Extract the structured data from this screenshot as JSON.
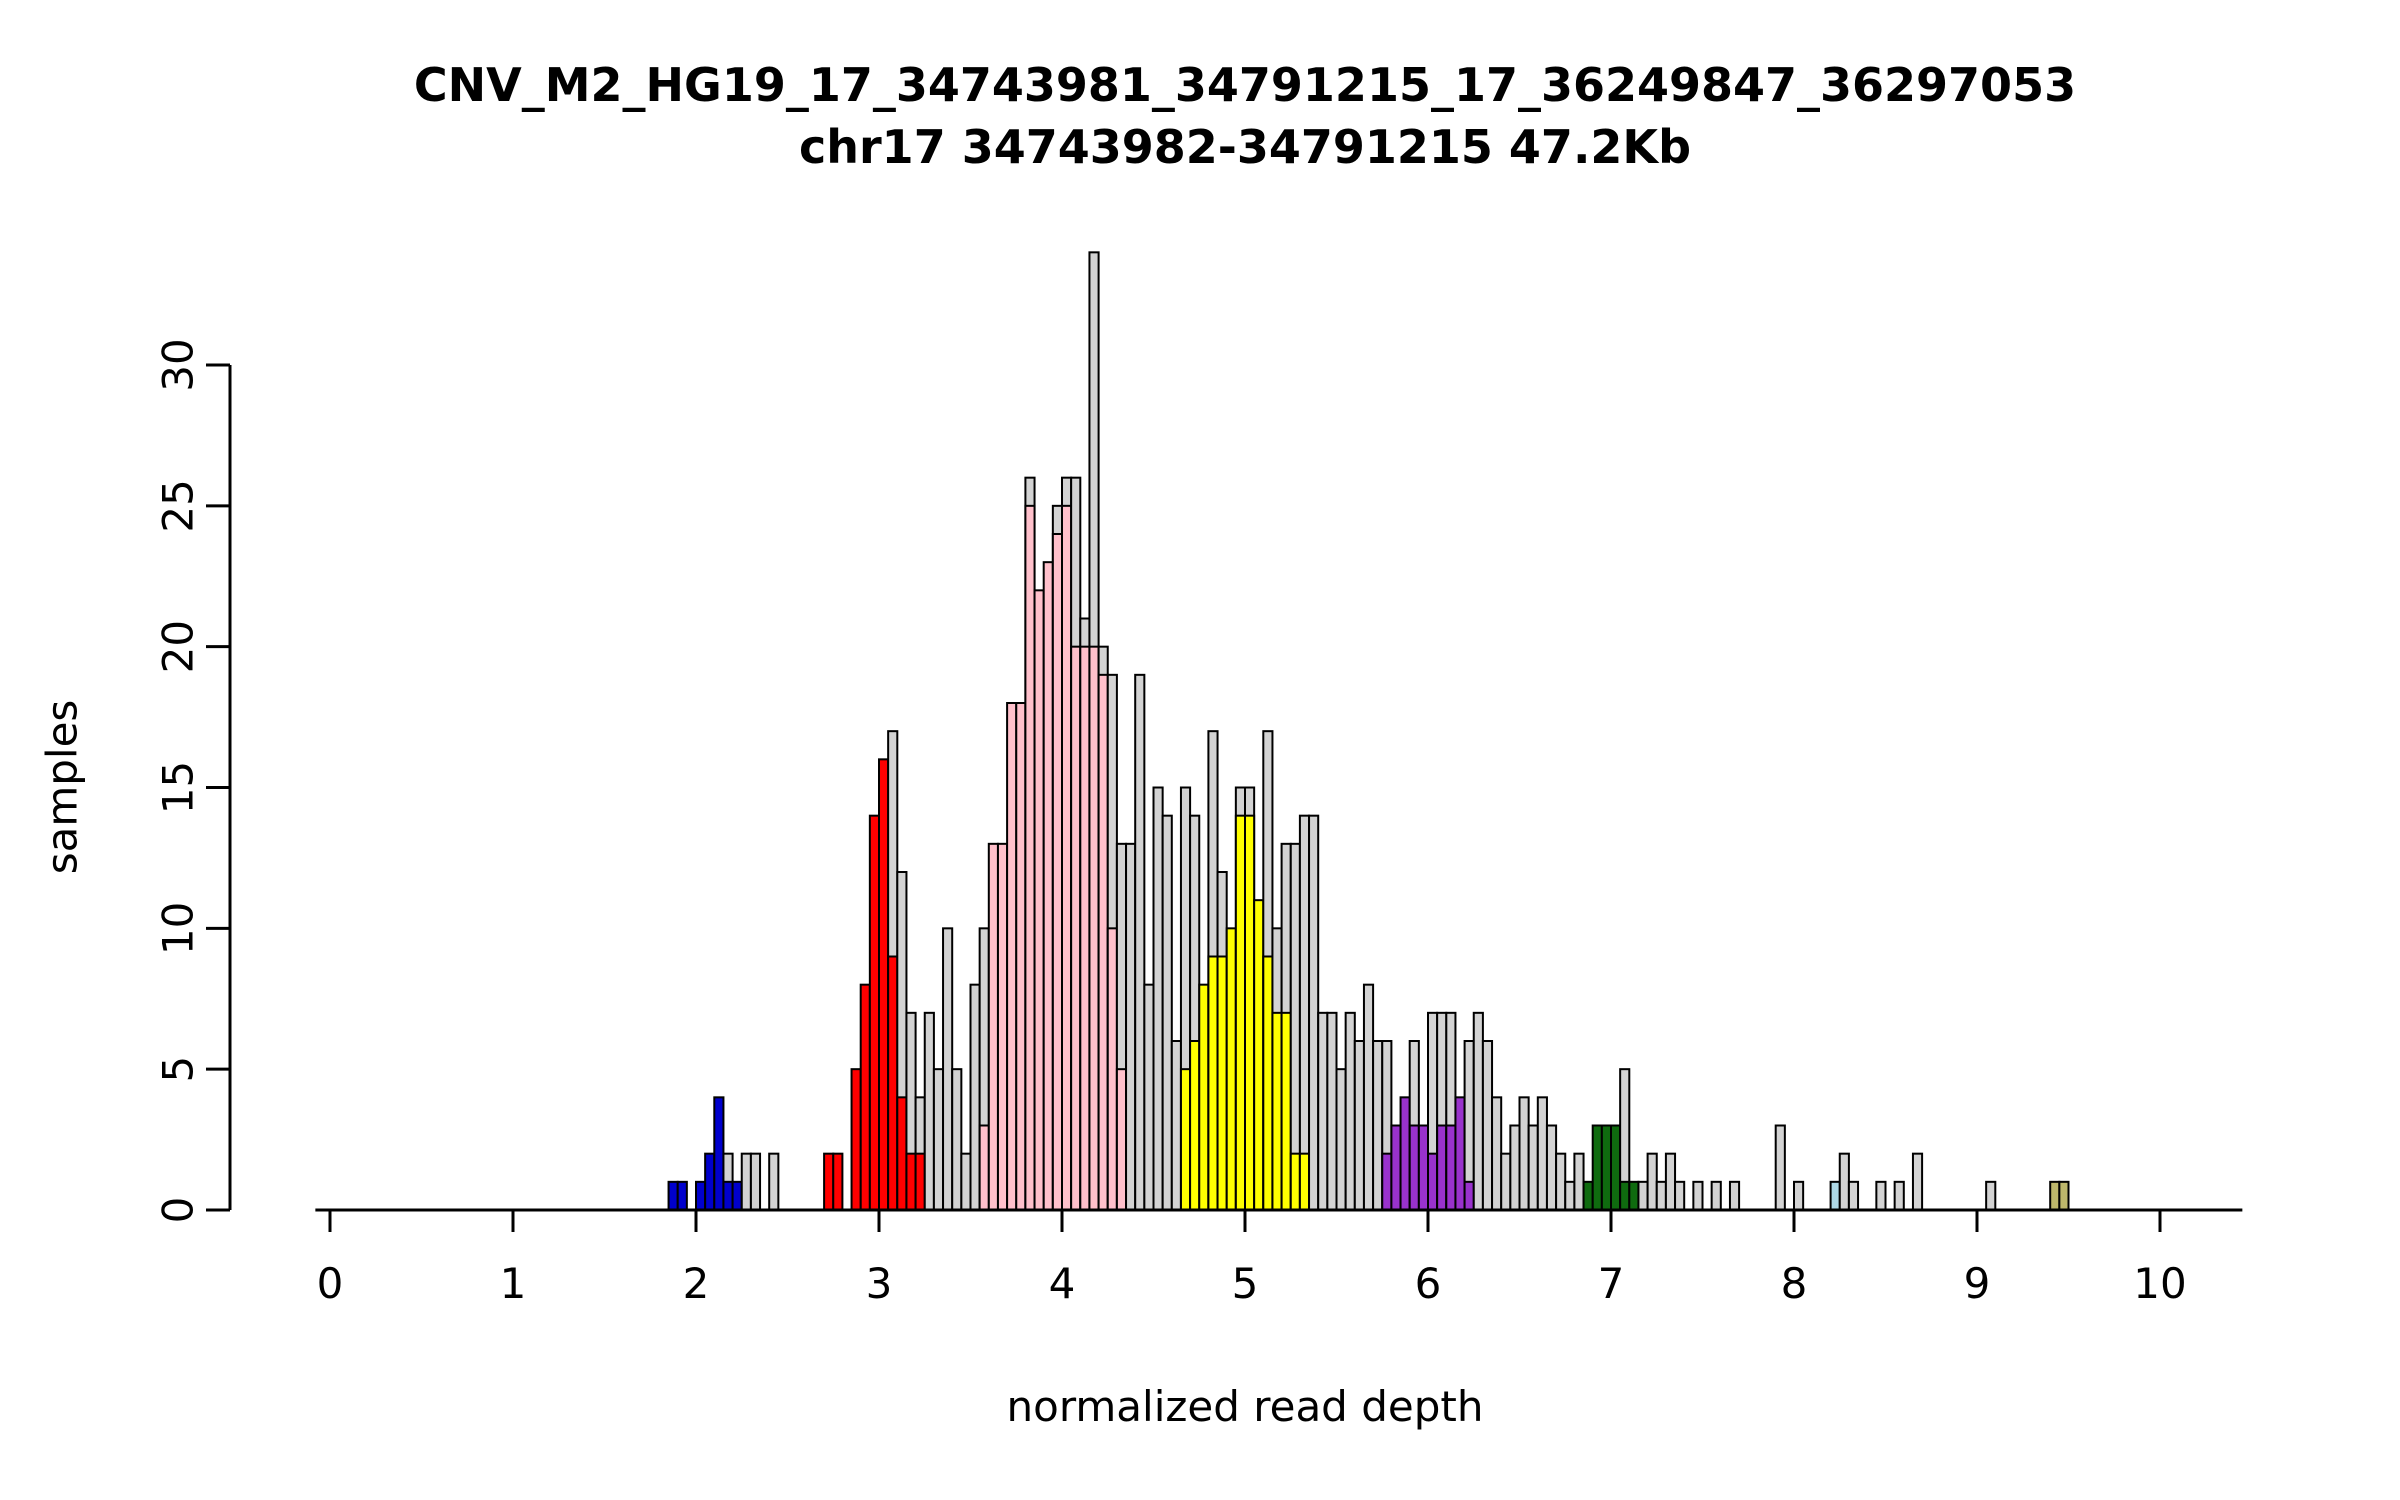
{
  "chart_data": {
    "type": "histogram",
    "title": "CNV_M2_HG19_17_34743981_34791215_17_36249847_36297053",
    "subtitle": "chr17 34743982-34791215 47.2Kb",
    "xlabel": "normalized read depth",
    "ylabel": "samples",
    "x_ticks": [
      0,
      1,
      2,
      3,
      4,
      5,
      6,
      7,
      8,
      9,
      10
    ],
    "y_ticks": [
      0,
      5,
      10,
      15,
      20,
      25,
      30
    ],
    "xlim": [
      -0.08,
      10.45
    ],
    "ylim": [
      0,
      34
    ],
    "bin_width": 0.05,
    "grid": false,
    "legend": "none",
    "colors": {
      "gray": "#d3d3d3",
      "blue": "#0000cd",
      "red": "#ff0000",
      "pink": "#ffc0cb",
      "yellow": "#ffff00",
      "purple": "#9932cc",
      "green": "#0f6b0f",
      "lightblue": "#add8e6",
      "khaki": "#bdb76b",
      "axis": "#000000"
    },
    "bins_format": [
      "x_left",
      "total_count",
      "highlight_count",
      "highlight_color"
    ],
    "bins": [
      [
        1.85,
        1,
        1,
        "blue"
      ],
      [
        1.9,
        1,
        1,
        "blue"
      ],
      [
        2.0,
        1,
        1,
        "blue"
      ],
      [
        2.05,
        2,
        2,
        "blue"
      ],
      [
        2.1,
        4,
        4,
        "blue"
      ],
      [
        2.15,
        2,
        1,
        "blue"
      ],
      [
        2.2,
        1,
        1,
        "blue"
      ],
      [
        2.25,
        2,
        0,
        "gray"
      ],
      [
        2.3,
        2,
        0,
        "gray"
      ],
      [
        2.4,
        2,
        0,
        "gray"
      ],
      [
        2.7,
        2,
        2,
        "red"
      ],
      [
        2.75,
        2,
        2,
        "red"
      ],
      [
        2.85,
        5,
        5,
        "red"
      ],
      [
        2.9,
        8,
        8,
        "red"
      ],
      [
        2.95,
        14,
        14,
        "red"
      ],
      [
        3.0,
        16,
        16,
        "red"
      ],
      [
        3.05,
        17,
        9,
        "red"
      ],
      [
        3.1,
        12,
        4,
        "red"
      ],
      [
        3.15,
        7,
        2,
        "red"
      ],
      [
        3.2,
        4,
        2,
        "red"
      ],
      [
        3.25,
        7,
        0,
        "gray"
      ],
      [
        3.3,
        5,
        0,
        "gray"
      ],
      [
        3.35,
        10,
        0,
        "gray"
      ],
      [
        3.4,
        5,
        0,
        "gray"
      ],
      [
        3.45,
        2,
        0,
        "gray"
      ],
      [
        3.5,
        8,
        0,
        "gray"
      ],
      [
        3.55,
        10,
        3,
        "pink"
      ],
      [
        3.6,
        13,
        13,
        "pink"
      ],
      [
        3.65,
        13,
        13,
        "pink"
      ],
      [
        3.7,
        18,
        18,
        "pink"
      ],
      [
        3.75,
        18,
        18,
        "pink"
      ],
      [
        3.8,
        26,
        25,
        "pink"
      ],
      [
        3.85,
        22,
        22,
        "pink"
      ],
      [
        3.9,
        23,
        23,
        "pink"
      ],
      [
        3.95,
        25,
        24,
        "pink"
      ],
      [
        4.0,
        26,
        25,
        "pink"
      ],
      [
        4.05,
        26,
        20,
        "pink"
      ],
      [
        4.1,
        21,
        20,
        "pink"
      ],
      [
        4.15,
        34,
        20,
        "pink"
      ],
      [
        4.2,
        20,
        19,
        "pink"
      ],
      [
        4.25,
        19,
        10,
        "pink"
      ],
      [
        4.3,
        13,
        5,
        "pink"
      ],
      [
        4.35,
        13,
        0,
        "gray"
      ],
      [
        4.4,
        19,
        0,
        "gray"
      ],
      [
        4.45,
        8,
        0,
        "gray"
      ],
      [
        4.5,
        15,
        0,
        "gray"
      ],
      [
        4.55,
        14,
        0,
        "gray"
      ],
      [
        4.6,
        6,
        0,
        "gray"
      ],
      [
        4.65,
        15,
        5,
        "yellow"
      ],
      [
        4.7,
        14,
        6,
        "yellow"
      ],
      [
        4.75,
        8,
        8,
        "yellow"
      ],
      [
        4.8,
        17,
        9,
        "yellow"
      ],
      [
        4.85,
        12,
        9,
        "yellow"
      ],
      [
        4.9,
        10,
        10,
        "yellow"
      ],
      [
        4.95,
        15,
        14,
        "yellow"
      ],
      [
        5.0,
        15,
        14,
        "yellow"
      ],
      [
        5.05,
        11,
        11,
        "yellow"
      ],
      [
        5.1,
        17,
        9,
        "yellow"
      ],
      [
        5.15,
        10,
        7,
        "yellow"
      ],
      [
        5.2,
        13,
        7,
        "yellow"
      ],
      [
        5.25,
        13,
        2,
        "yellow"
      ],
      [
        5.3,
        14,
        2,
        "yellow"
      ],
      [
        5.35,
        14,
        0,
        "gray"
      ],
      [
        5.4,
        7,
        0,
        "gray"
      ],
      [
        5.45,
        7,
        0,
        "gray"
      ],
      [
        5.5,
        5,
        0,
        "gray"
      ],
      [
        5.55,
        7,
        0,
        "gray"
      ],
      [
        5.6,
        6,
        0,
        "gray"
      ],
      [
        5.65,
        8,
        0,
        "gray"
      ],
      [
        5.7,
        6,
        0,
        "gray"
      ],
      [
        5.75,
        6,
        2,
        "purple"
      ],
      [
        5.8,
        3,
        3,
        "purple"
      ],
      [
        5.85,
        4,
        4,
        "purple"
      ],
      [
        5.9,
        6,
        3,
        "purple"
      ],
      [
        5.95,
        3,
        3,
        "purple"
      ],
      [
        6.0,
        7,
        2,
        "purple"
      ],
      [
        6.05,
        7,
        3,
        "purple"
      ],
      [
        6.1,
        7,
        3,
        "purple"
      ],
      [
        6.15,
        4,
        4,
        "purple"
      ],
      [
        6.2,
        6,
        1,
        "purple"
      ],
      [
        6.25,
        7,
        0,
        "gray"
      ],
      [
        6.3,
        6,
        0,
        "gray"
      ],
      [
        6.35,
        4,
        0,
        "gray"
      ],
      [
        6.4,
        2,
        0,
        "gray"
      ],
      [
        6.45,
        3,
        0,
        "gray"
      ],
      [
        6.5,
        4,
        0,
        "gray"
      ],
      [
        6.55,
        3,
        0,
        "gray"
      ],
      [
        6.6,
        4,
        0,
        "gray"
      ],
      [
        6.65,
        3,
        0,
        "gray"
      ],
      [
        6.7,
        2,
        0,
        "gray"
      ],
      [
        6.75,
        1,
        0,
        "gray"
      ],
      [
        6.8,
        2,
        0,
        "gray"
      ],
      [
        6.85,
        1,
        1,
        "green"
      ],
      [
        6.9,
        3,
        3,
        "green"
      ],
      [
        6.95,
        3,
        3,
        "green"
      ],
      [
        7.0,
        3,
        3,
        "green"
      ],
      [
        7.05,
        5,
        1,
        "green"
      ],
      [
        7.1,
        1,
        1,
        "green"
      ],
      [
        7.15,
        1,
        0,
        "gray"
      ],
      [
        7.2,
        2,
        0,
        "gray"
      ],
      [
        7.25,
        1,
        0,
        "gray"
      ],
      [
        7.3,
        2,
        0,
        "gray"
      ],
      [
        7.35,
        1,
        0,
        "gray"
      ],
      [
        7.45,
        1,
        0,
        "gray"
      ],
      [
        7.55,
        1,
        0,
        "gray"
      ],
      [
        7.65,
        1,
        0,
        "gray"
      ],
      [
        7.9,
        3,
        0,
        "gray"
      ],
      [
        8.0,
        1,
        0,
        "gray"
      ],
      [
        8.2,
        1,
        1,
        "lightblue"
      ],
      [
        8.25,
        2,
        0,
        "gray"
      ],
      [
        8.3,
        1,
        0,
        "gray"
      ],
      [
        8.45,
        1,
        0,
        "gray"
      ],
      [
        8.55,
        1,
        0,
        "gray"
      ],
      [
        8.65,
        2,
        0,
        "gray"
      ],
      [
        9.05,
        1,
        0,
        "gray"
      ],
      [
        9.4,
        1,
        1,
        "khaki"
      ],
      [
        9.45,
        1,
        1,
        "khaki"
      ]
    ]
  }
}
